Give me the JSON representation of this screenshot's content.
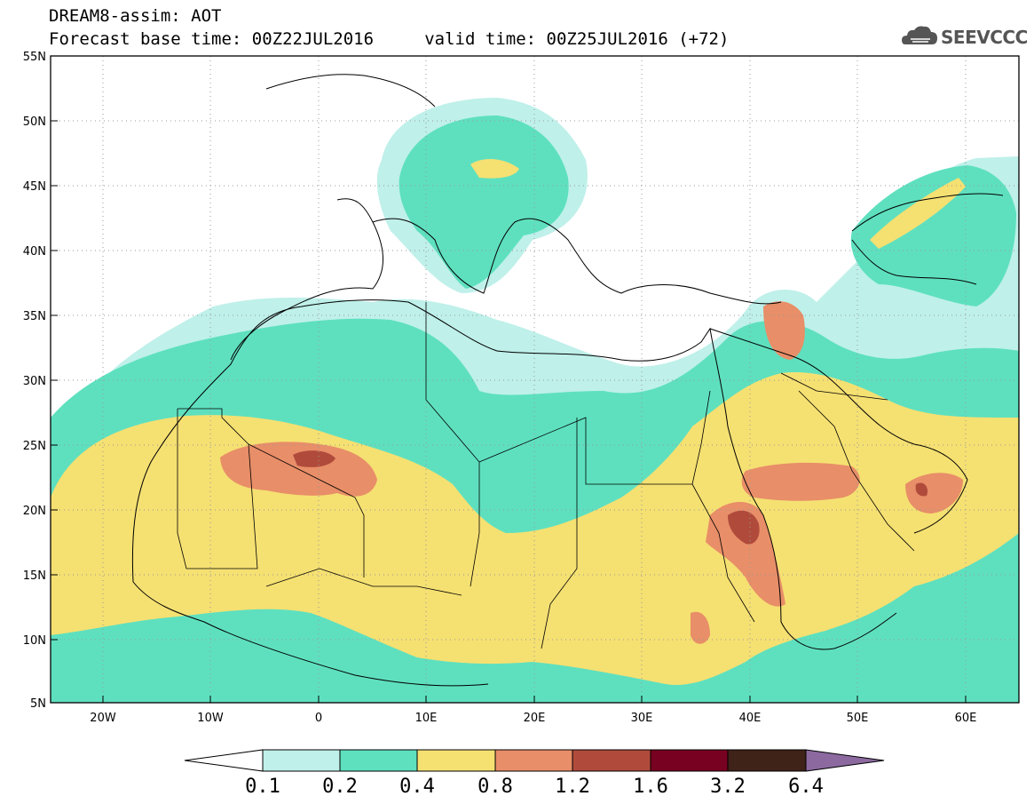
{
  "title": {
    "line1": "DREAM8-assim: AOT",
    "line2": "Forecast base time: 00Z22JUL2016     valid time: 00Z25JUL2016 (+72)"
  },
  "logo": {
    "text": "SEEVCCC",
    "icon": "cloud-icon"
  },
  "axes": {
    "lat_labels": [
      "55N",
      "50N",
      "45N",
      "40N",
      "35N",
      "30N",
      "25N",
      "20N",
      "15N",
      "10N",
      "5N"
    ],
    "lon_labels": [
      "20W",
      "10W",
      "0",
      "10E",
      "20E",
      "30E",
      "40E",
      "50E",
      "60E"
    ]
  },
  "colorbar": {
    "labels": [
      "0.1",
      "0.2",
      "0.4",
      "0.8",
      "1.2",
      "1.6",
      "3.2",
      "6.4"
    ],
    "colors": [
      "#ffffff",
      "#bff0ea",
      "#5ee0bf",
      "#f5e072",
      "#e88e68",
      "#b04b3c",
      "#780020",
      "#3f2218",
      "#8c6aa0"
    ]
  },
  "map_colors": {
    "c1": "#bff0ea",
    "c2": "#5ee0bf",
    "c3": "#f5e072",
    "c4": "#e88e68",
    "c5": "#b04b3c"
  }
}
